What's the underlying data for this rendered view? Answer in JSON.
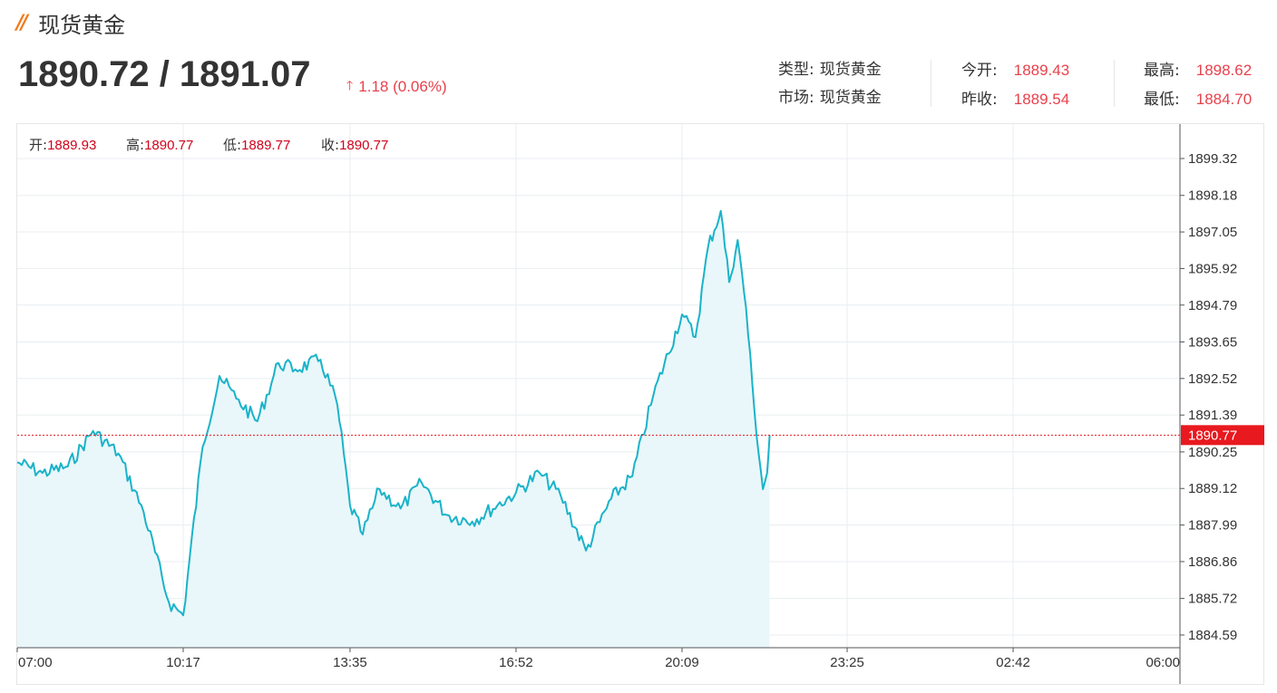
{
  "header": {
    "logo": "//",
    "title": "现货黄金",
    "price": "1890.72 / 1891.07",
    "change": "1.18 (0.06%)"
  },
  "stats": {
    "type_label": "类型:",
    "type_value": "现货黄金",
    "market_label": "市场:",
    "market_value": "现货黄金",
    "open_label": "今开:",
    "open_value": "1889.43",
    "prev_close_label": "昨收:",
    "prev_close_value": "1889.54",
    "high_label": "最高:",
    "high_value": "1898.62",
    "low_label": "最低:",
    "low_value": "1884.70"
  },
  "ohlc": {
    "open_label": "开:",
    "open_value": "1889.93",
    "high_label": "高:",
    "high_value": "1890.77",
    "low_label": "低:",
    "low_value": "1889.77",
    "close_label": "收:",
    "close_value": "1890.77"
  },
  "colors": {
    "line": "#1ab3c9",
    "area": "#e9f7fa",
    "up": "#e8414c",
    "price_tag": "#e8191f",
    "grid": "#e8eef1"
  },
  "chart_data": {
    "type": "area",
    "current_price": "1890.77",
    "x_ticks": [
      "07:00",
      "10:17",
      "13:35",
      "16:52",
      "20:09",
      "23:25",
      "02:42",
      "06:00"
    ],
    "y_ticks": [
      "1899.32",
      "1898.18",
      "1897.05",
      "1895.92",
      "1894.79",
      "1893.65",
      "1892.52",
      "1891.39",
      "1890.25",
      "1889.12",
      "1887.99",
      "1886.86",
      "1885.72",
      "1884.59"
    ],
    "xlim": [
      "07:00",
      "06:00"
    ],
    "ylim": [
      1884.59,
      1899.32
    ],
    "x": [
      "07:00",
      "07:30",
      "08:00",
      "08:30",
      "09:00",
      "09:30",
      "10:00",
      "10:17",
      "10:40",
      "11:00",
      "11:20",
      "11:45",
      "12:10",
      "12:30",
      "13:00",
      "13:20",
      "13:35",
      "13:50",
      "14:10",
      "14:35",
      "15:00",
      "15:30",
      "16:00",
      "16:30",
      "16:52",
      "17:20",
      "17:45",
      "18:15",
      "18:45",
      "19:10",
      "19:35",
      "20:09",
      "20:25",
      "20:40",
      "20:55",
      "21:05",
      "21:15",
      "21:25",
      "21:35",
      "21:45",
      "21:50",
      "21:53"
    ],
    "y": [
      1889.93,
      1889.6,
      1889.8,
      1890.9,
      1890.2,
      1888.4,
      1885.6,
      1885.2,
      1890.4,
      1892.6,
      1891.9,
      1891.2,
      1893.0,
      1892.8,
      1893.1,
      1891.7,
      1888.6,
      1887.7,
      1889.1,
      1888.5,
      1889.3,
      1888.3,
      1888.1,
      1888.6,
      1889.0,
      1889.6,
      1888.9,
      1887.2,
      1888.8,
      1889.5,
      1892.0,
      1894.5,
      1893.8,
      1896.6,
      1897.7,
      1895.5,
      1896.8,
      1894.7,
      1891.5,
      1889.1,
      1889.6,
      1890.77
    ]
  }
}
